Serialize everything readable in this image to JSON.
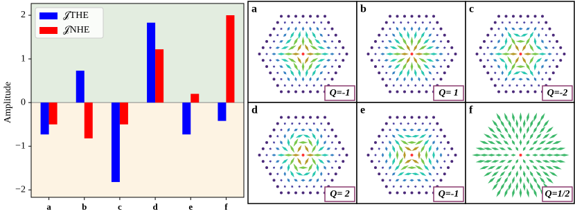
{
  "chart_data": {
    "type": "bar",
    "ylabel": "Amplitude",
    "categories": [
      "a",
      "b",
      "c",
      "d",
      "e",
      "f"
    ],
    "series": [
      {
        "name": "𝒥THE",
        "color": "#0000ff",
        "values": [
          -0.73,
          0.73,
          -1.82,
          1.83,
          -0.73,
          -0.42
        ]
      },
      {
        "name": "𝒥NHE",
        "color": "#ff0000",
        "values": [
          -0.5,
          -0.82,
          -0.5,
          1.22,
          0.2,
          2.0
        ]
      }
    ],
    "ylim": [
      -2.17,
      2.27
    ],
    "yticks": [
      {
        "value": -2,
        "label": "−2"
      },
      {
        "value": -1,
        "label": "−1"
      },
      0,
      1,
      2
    ],
    "legend": "upper left",
    "background": {
      "positive": "#e3ede0",
      "negative": "#fdf3e3"
    }
  },
  "panels": [
    {
      "label": "a",
      "q": "Q=-1"
    },
    {
      "label": "b",
      "q": "Q= 1"
    },
    {
      "label": "c",
      "q": "Q=-2"
    },
    {
      "label": "d",
      "q": "Q= 2"
    },
    {
      "label": "e",
      "q": "Q=-1"
    },
    {
      "label": "f",
      "q": "Q=1/2"
    }
  ]
}
